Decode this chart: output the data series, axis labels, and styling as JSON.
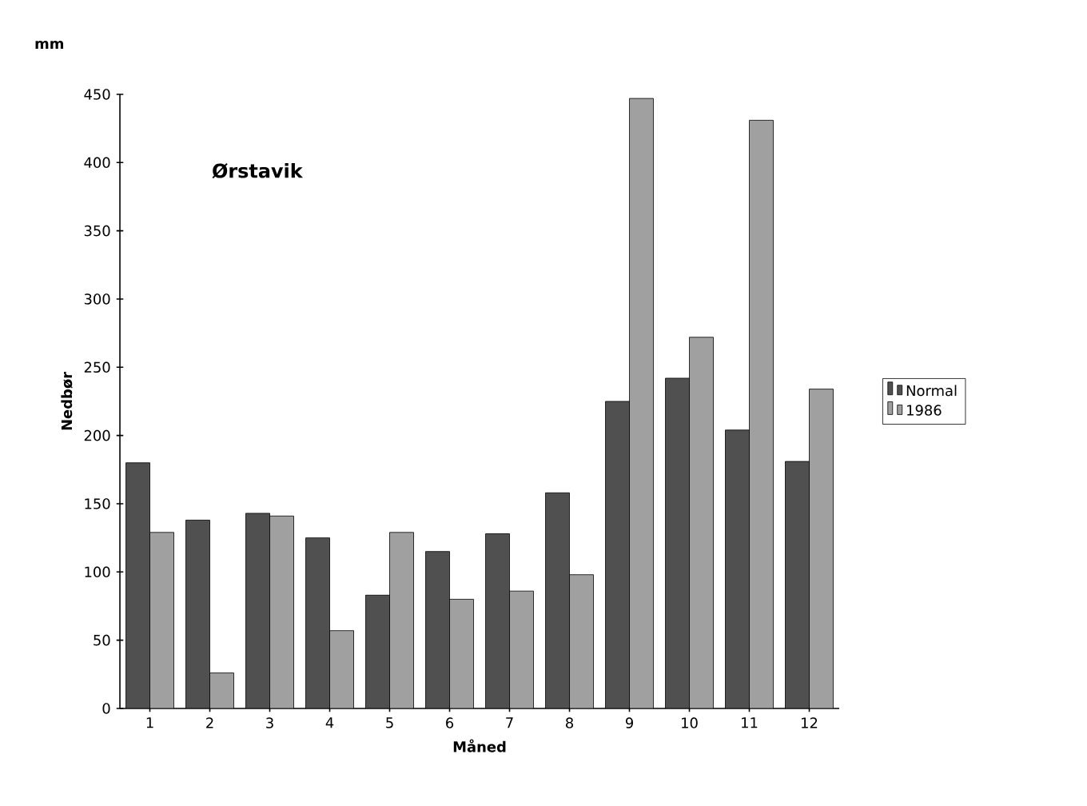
{
  "chart_data": {
    "type": "bar",
    "title": "Ørstavik",
    "xlabel": "Måned",
    "ylabel": "Nedbør",
    "annotations": [
      "mm"
    ],
    "categories": [
      "1",
      "2",
      "3",
      "4",
      "5",
      "6",
      "7",
      "8",
      "9",
      "10",
      "11",
      "12"
    ],
    "series": [
      {
        "name": "Normal",
        "color": "#505050",
        "values": [
          180,
          138,
          143,
          125,
          83,
          115,
          128,
          158,
          225,
          242,
          204,
          181
        ]
      },
      {
        "name": "1986",
        "color": "#a0a0a0",
        "values": [
          129,
          26,
          141,
          57,
          129,
          80,
          86,
          98,
          447,
          272,
          431,
          234
        ]
      }
    ],
    "ylim": [
      0,
      450
    ],
    "yticks": [
      0,
      50,
      100,
      150,
      200,
      250,
      300,
      350,
      400,
      450
    ],
    "legend": "right"
  }
}
